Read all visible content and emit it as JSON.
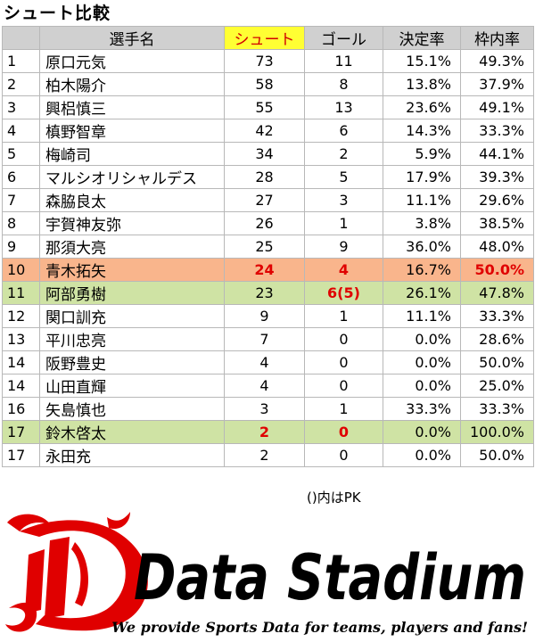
{
  "title": "シュート比較",
  "columns": [
    "",
    "選手名",
    "シュート",
    "ゴール",
    "決定率",
    "枠内率"
  ],
  "rows": [
    {
      "no": "1",
      "name": "原口元気",
      "shots": "73",
      "goals": "11",
      "rate": "15.1%",
      "on_target": "49.3%"
    },
    {
      "no": "2",
      "name": "柏木陽介",
      "shots": "58",
      "goals": "8",
      "rate": "13.8%",
      "on_target": "37.9%"
    },
    {
      "no": "3",
      "name": "興梠慎三",
      "shots": "55",
      "goals": "13",
      "rate": "23.6%",
      "on_target": "49.1%"
    },
    {
      "no": "4",
      "name": "槙野智章",
      "shots": "42",
      "goals": "6",
      "rate": "14.3%",
      "on_target": "33.3%"
    },
    {
      "no": "5",
      "name": "梅崎司",
      "shots": "34",
      "goals": "2",
      "rate": "5.9%",
      "on_target": "44.1%"
    },
    {
      "no": "6",
      "name": "マルシオリシャルデス",
      "shots": "28",
      "goals": "5",
      "rate": "17.9%",
      "on_target": "39.3%"
    },
    {
      "no": "7",
      "name": "森脇良太",
      "shots": "27",
      "goals": "3",
      "rate": "11.1%",
      "on_target": "29.6%"
    },
    {
      "no": "8",
      "name": "宇賀神友弥",
      "shots": "26",
      "goals": "1",
      "rate": "3.8%",
      "on_target": "38.5%"
    },
    {
      "no": "9",
      "name": "那須大亮",
      "shots": "25",
      "goals": "9",
      "rate": "36.0%",
      "on_target": "48.0%"
    },
    {
      "no": "10",
      "name": "青木拓矢",
      "shots": "24",
      "goals": "4",
      "rate": "16.7%",
      "on_target": "50.0%"
    },
    {
      "no": "11",
      "name": "阿部勇樹",
      "shots": "23",
      "goals": "6(5)",
      "rate": "26.1%",
      "on_target": "47.8%"
    },
    {
      "no": "12",
      "name": "関口訓充",
      "shots": "9",
      "goals": "1",
      "rate": "11.1%",
      "on_target": "33.3%"
    },
    {
      "no": "13",
      "name": "平川忠亮",
      "shots": "7",
      "goals": "0",
      "rate": "0.0%",
      "on_target": "28.6%"
    },
    {
      "no": "14",
      "name": "阪野豊史",
      "shots": "4",
      "goals": "0",
      "rate": "0.0%",
      "on_target": "50.0%"
    },
    {
      "no": "14",
      "name": "山田直輝",
      "shots": "4",
      "goals": "0",
      "rate": "0.0%",
      "on_target": "25.0%"
    },
    {
      "no": "16",
      "name": "矢島慎也",
      "shots": "3",
      "goals": "1",
      "rate": "33.3%",
      "on_target": "33.3%"
    },
    {
      "no": "17",
      "name": "鈴木啓太",
      "shots": "2",
      "goals": "0",
      "rate": "0.0%",
      "on_target": "100.0%"
    },
    {
      "no": "17",
      "name": "永田充",
      "shots": "2",
      "goals": "0",
      "rate": "0.0%",
      "on_target": "50.0%"
    }
  ],
  "note": "()内はPK",
  "logo": {
    "brand": "Data Stadium",
    "tagline": "We provide Sports Data for teams, players and fans!",
    "brand_color": "#e00000"
  },
  "colors": {
    "header_bg": "#d0d0d0",
    "shot_header_bg": "#ffff33",
    "highlight_orange": "#f9b58c",
    "highlight_green": "#cfe3a4",
    "emphasis_red": "#e00000"
  }
}
